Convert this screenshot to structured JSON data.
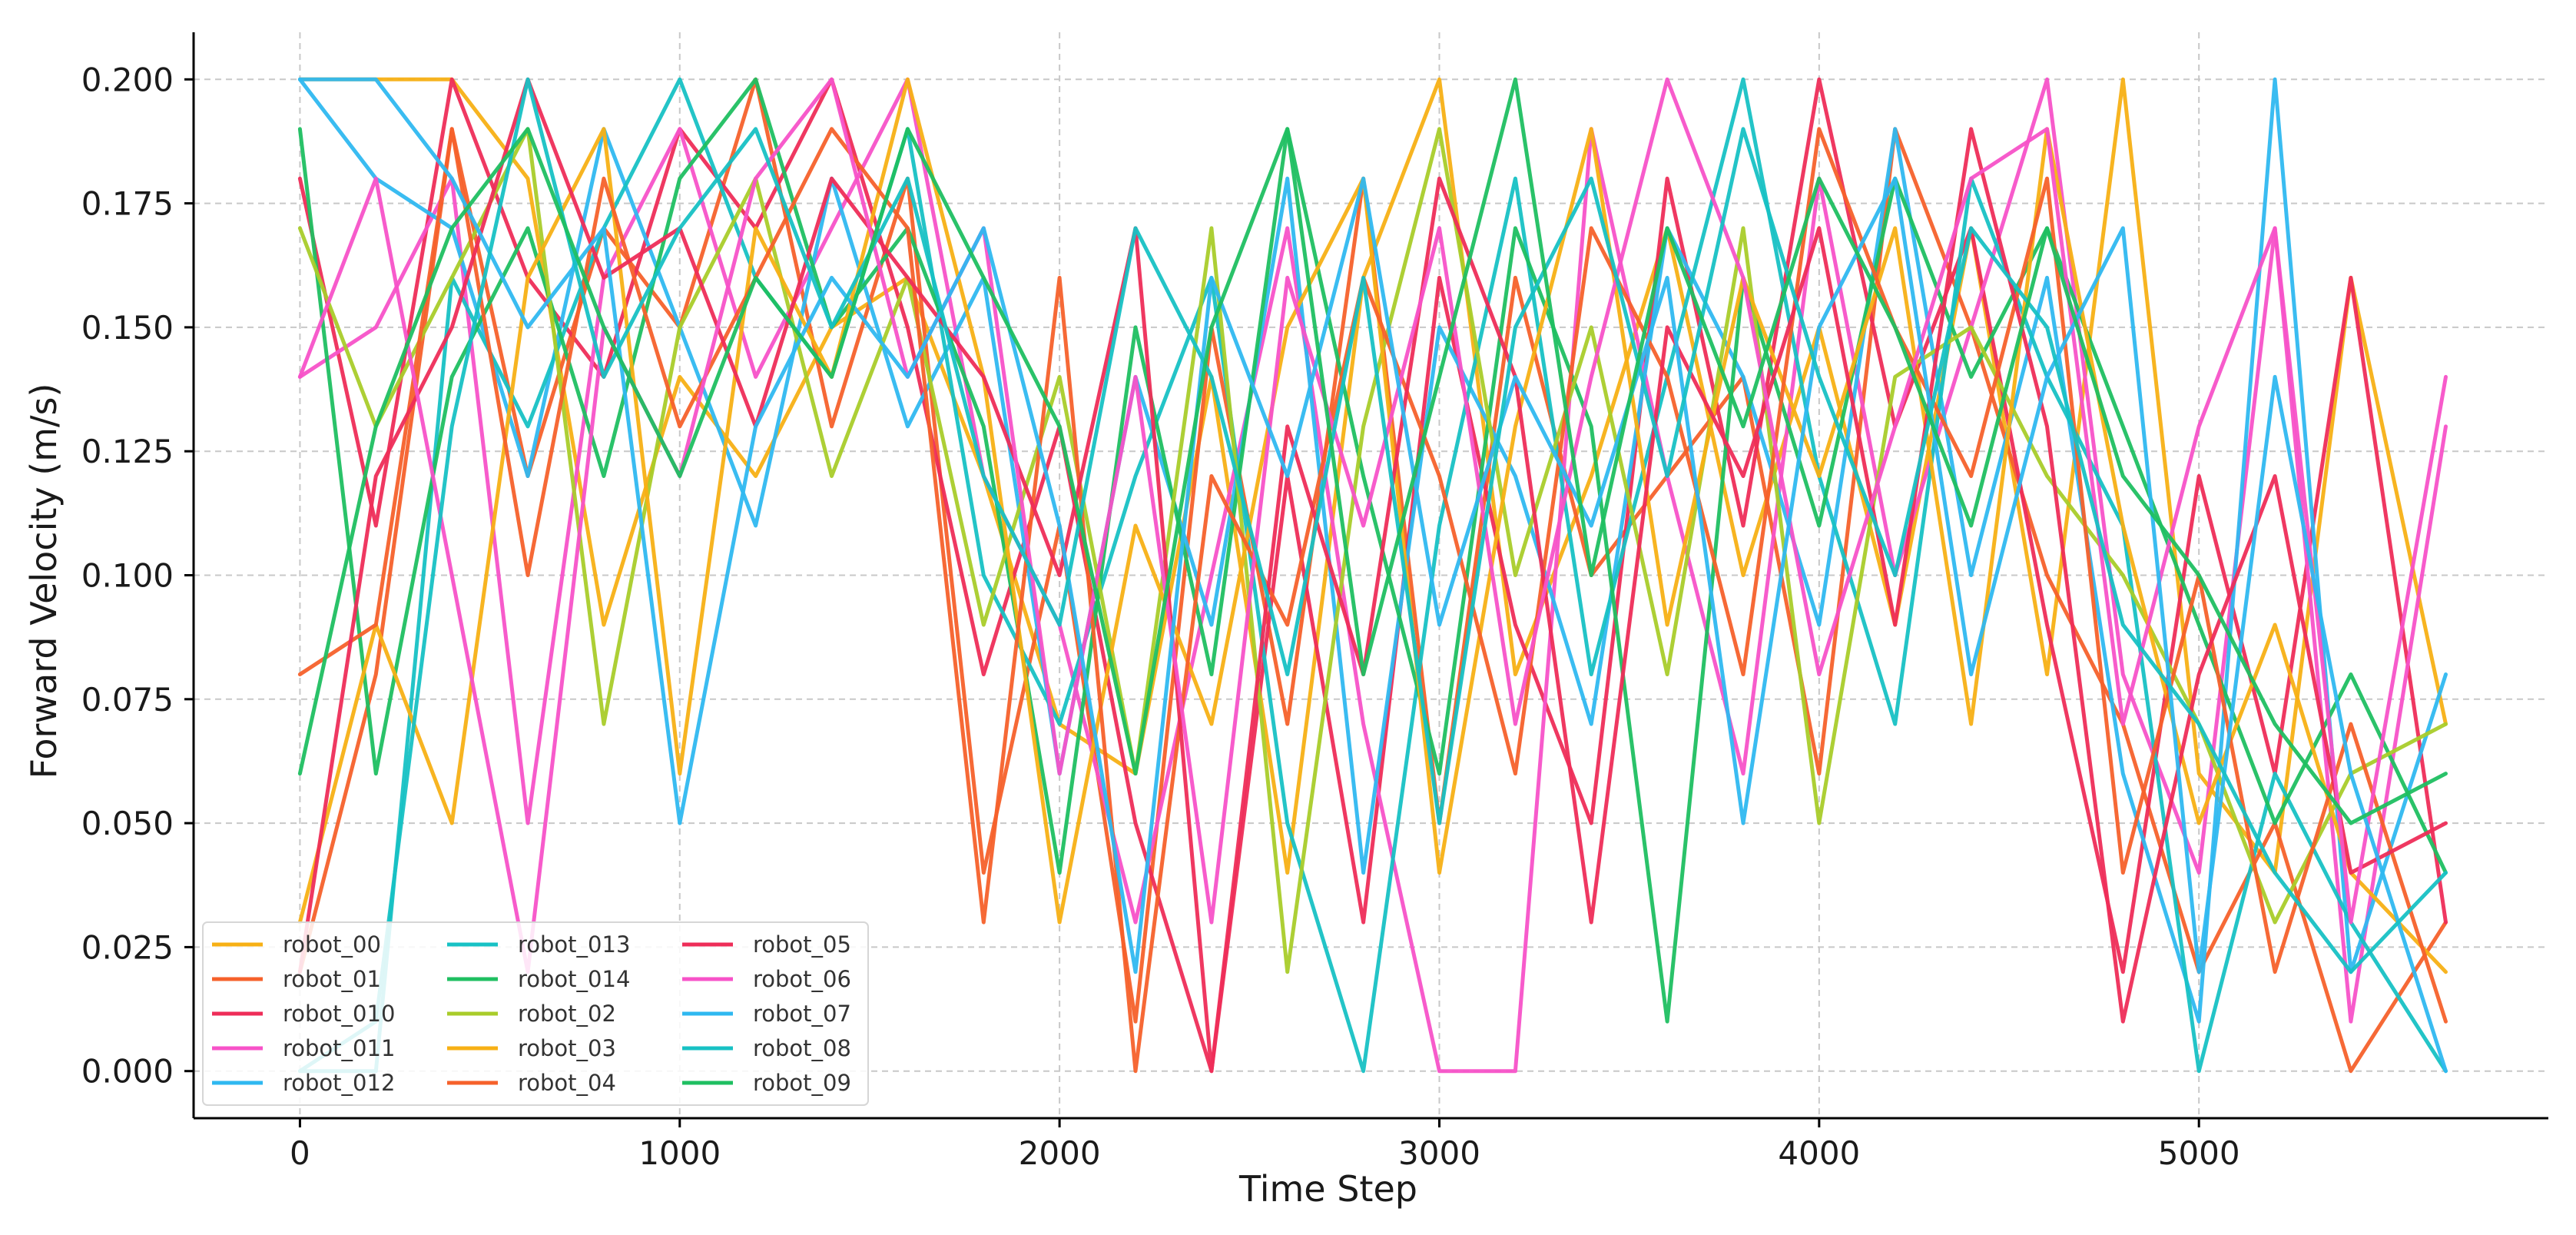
{
  "chart_data": {
    "type": "line",
    "title": "",
    "xlabel": "Time Step",
    "ylabel": "Forward Velocity (m/s)",
    "xlim": [
      -280,
      5920
    ],
    "ylim": [
      -0.0095,
      0.2095
    ],
    "xticks": [
      0,
      1000,
      2000,
      3000,
      4000,
      5000
    ],
    "xtick_labels": [
      "0",
      "1000",
      "2000",
      "3000",
      "4000",
      "5000"
    ],
    "yticks": [
      0.0,
      0.025,
      0.05,
      0.075,
      0.1,
      0.125,
      0.15,
      0.175,
      0.2
    ],
    "ytick_labels": [
      "0.000",
      "0.025",
      "0.050",
      "0.075",
      "0.100",
      "0.125",
      "0.150",
      "0.175",
      "0.200"
    ],
    "grid": true,
    "legend_position": "lower-left",
    "legend_columns": 3,
    "series": [
      {
        "name": "robot_00",
        "color": "#f7b015",
        "x": [
          0,
          200,
          400,
          600,
          800,
          1000,
          1200,
          1400,
          1600,
          1800,
          2000,
          2200,
          2400,
          2600,
          2800,
          3000,
          3200,
          3400,
          3600,
          3800,
          4000,
          4200,
          4400,
          4600,
          4800,
          5000,
          5200,
          5400,
          5650
        ],
        "y": [
          0.2,
          0.2,
          0.2,
          0.18,
          0.09,
          0.14,
          0.12,
          0.15,
          0.16,
          0.12,
          0.07,
          0.06,
          0.14,
          0.04,
          0.16,
          0.2,
          0.08,
          0.12,
          0.17,
          0.1,
          0.15,
          0.09,
          0.17,
          0.08,
          0.2,
          0.06,
          0.04,
          0.16,
          0.07
        ]
      },
      {
        "name": "robot_01",
        "color": "#f6612b",
        "x": [
          0,
          200,
          400,
          600,
          800,
          1000,
          1200,
          1400,
          1600,
          1800,
          2000,
          2200,
          2400,
          2600,
          2800,
          3000,
          3200,
          3400,
          3600,
          3800,
          4000,
          4200,
          4400,
          4600,
          4800,
          5000,
          5200,
          5400,
          5650
        ],
        "y": [
          0.02,
          0.08,
          0.19,
          0.12,
          0.17,
          0.15,
          0.2,
          0.13,
          0.18,
          0.04,
          0.11,
          0.01,
          0.15,
          0.07,
          0.18,
          0.05,
          0.16,
          0.1,
          0.12,
          0.14,
          0.06,
          0.19,
          0.15,
          0.1,
          0.07,
          0.02,
          0.05,
          0.0,
          0.03
        ]
      },
      {
        "name": "robot_010",
        "color": "#ee2d58",
        "x": [
          0,
          200,
          400,
          600,
          800,
          1000,
          1200,
          1400,
          1600,
          1800,
          2000,
          2200,
          2400,
          2600,
          2800,
          3000,
          3200,
          3400,
          3600,
          3800,
          4000,
          4200,
          4400,
          4600,
          4800,
          5000,
          5200,
          5400,
          5650
        ],
        "y": [
          0.18,
          0.11,
          0.2,
          0.16,
          0.14,
          0.19,
          0.17,
          0.2,
          0.15,
          0.08,
          0.13,
          0.05,
          0.0,
          0.12,
          0.03,
          0.16,
          0.09,
          0.05,
          0.18,
          0.11,
          0.2,
          0.13,
          0.17,
          0.09,
          0.02,
          0.12,
          0.06,
          0.16,
          0.03
        ]
      },
      {
        "name": "robot_011",
        "color": "#f752c8",
        "x": [
          0,
          200,
          400,
          600,
          800,
          1000,
          1200,
          1400,
          1600,
          1800,
          2000,
          2200,
          2400,
          2600,
          2800,
          3000,
          3200,
          3400,
          3600,
          3800,
          4000,
          4200,
          4400,
          4600,
          4800,
          5000,
          5200,
          5400,
          5650
        ],
        "y": [
          0.14,
          0.15,
          0.18,
          0.05,
          0.16,
          0.19,
          0.14,
          0.17,
          0.2,
          0.12,
          0.09,
          0.03,
          0.1,
          0.17,
          0.07,
          0.0,
          0.0,
          0.19,
          0.12,
          0.06,
          0.18,
          0.1,
          0.15,
          0.2,
          0.08,
          0.04,
          0.17,
          0.01,
          0.13
        ]
      },
      {
        "name": "robot_012",
        "color": "#2fb8f0",
        "x": [
          0,
          200,
          400,
          600,
          800,
          1000,
          1200,
          1400,
          1600,
          1800,
          2000,
          2200,
          2400,
          2600,
          2800,
          3000,
          3200,
          3400,
          3600,
          3800,
          4000,
          4200,
          4400,
          4600,
          4800,
          5000,
          5200,
          5400,
          5650
        ],
        "y": [
          0.2,
          0.18,
          0.17,
          0.12,
          0.19,
          0.15,
          0.11,
          0.18,
          0.13,
          0.16,
          0.06,
          0.14,
          0.09,
          0.18,
          0.04,
          0.15,
          0.12,
          0.07,
          0.17,
          0.14,
          0.09,
          0.19,
          0.1,
          0.16,
          0.06,
          0.01,
          0.2,
          0.02,
          0.08
        ]
      },
      {
        "name": "robot_013",
        "color": "#17c1c4",
        "x": [
          0,
          200,
          400,
          600,
          800,
          1000,
          1200,
          1400,
          1600,
          1800,
          2000,
          2200,
          2400,
          2600,
          2800,
          3000,
          3200,
          3400,
          3600,
          3800,
          4000,
          4200,
          4400,
          4600,
          4800,
          5000,
          5200,
          5400,
          5650
        ],
        "y": [
          0.0,
          0.0,
          0.16,
          0.13,
          0.17,
          0.2,
          0.16,
          0.14,
          0.19,
          0.1,
          0.07,
          0.12,
          0.16,
          0.05,
          0.0,
          0.11,
          0.18,
          0.08,
          0.14,
          0.2,
          0.12,
          0.07,
          0.18,
          0.14,
          0.11,
          0.0,
          0.06,
          0.03,
          0.0
        ]
      },
      {
        "name": "robot_014",
        "color": "#1fbf61",
        "x": [
          0,
          200,
          400,
          600,
          800,
          1000,
          1200,
          1400,
          1600,
          1800,
          2000,
          2200,
          2400,
          2600,
          2800,
          3000,
          3200,
          3400,
          3600,
          3800,
          4000,
          4200,
          4400,
          4600,
          4800,
          5000,
          5200,
          5400,
          5650
        ],
        "y": [
          0.19,
          0.06,
          0.14,
          0.17,
          0.12,
          0.18,
          0.2,
          0.15,
          0.17,
          0.13,
          0.04,
          0.15,
          0.08,
          0.19,
          0.12,
          0.06,
          0.17,
          0.13,
          0.01,
          0.16,
          0.11,
          0.18,
          0.14,
          0.17,
          0.13,
          0.09,
          0.05,
          0.08,
          0.04
        ]
      },
      {
        "name": "robot_02",
        "color": "#a9cc2a",
        "x": [
          0,
          200,
          400,
          600,
          800,
          1000,
          1200,
          1400,
          1600,
          1800,
          2000,
          2200,
          2400,
          2600,
          2800,
          3000,
          3200,
          3400,
          3600,
          3800,
          4000,
          4200,
          4400,
          4600,
          4800,
          5000,
          5200,
          5400,
          5650
        ],
        "y": [
          0.17,
          0.13,
          0.16,
          0.19,
          0.07,
          0.15,
          0.18,
          0.12,
          0.16,
          0.09,
          0.14,
          0.06,
          0.17,
          0.02,
          0.13,
          0.19,
          0.1,
          0.15,
          0.08,
          0.17,
          0.05,
          0.14,
          0.15,
          0.12,
          0.1,
          0.07,
          0.03,
          0.06,
          0.07
        ]
      },
      {
        "name": "robot_03",
        "color": "#f7b015",
        "x": [
          0,
          200,
          400,
          600,
          800,
          1000,
          1200,
          1400,
          1600,
          1800,
          2000,
          2200,
          2400,
          2600,
          2800,
          3000,
          3200,
          3400,
          3600,
          3800,
          4000,
          4200,
          4400,
          4600,
          4800,
          5000,
          5200,
          5400,
          5650
        ],
        "y": [
          0.03,
          0.09,
          0.05,
          0.16,
          0.19,
          0.06,
          0.17,
          0.14,
          0.2,
          0.14,
          0.03,
          0.11,
          0.07,
          0.15,
          0.18,
          0.04,
          0.13,
          0.19,
          0.09,
          0.16,
          0.12,
          0.17,
          0.07,
          0.19,
          0.11,
          0.05,
          0.09,
          0.04,
          0.02
        ]
      },
      {
        "name": "robot_04",
        "color": "#f6612b",
        "x": [
          0,
          200,
          400,
          600,
          800,
          1000,
          1200,
          1400,
          1600,
          1800,
          2000,
          2200,
          2400,
          2600,
          2800,
          3000,
          3200,
          3400,
          3600,
          3800,
          4000,
          4200,
          4400,
          4600,
          4800,
          5000,
          5200,
          5400,
          5650
        ],
        "y": [
          0.08,
          0.09,
          0.19,
          0.1,
          0.18,
          0.13,
          0.16,
          0.19,
          0.17,
          0.03,
          0.16,
          0.0,
          0.12,
          0.09,
          0.16,
          0.12,
          0.06,
          0.17,
          0.14,
          0.08,
          0.19,
          0.15,
          0.12,
          0.18,
          0.04,
          0.1,
          0.02,
          0.07,
          0.01
        ]
      },
      {
        "name": "robot_05",
        "color": "#ee2d58",
        "x": [
          0,
          200,
          400,
          600,
          800,
          1000,
          1200,
          1400,
          1600,
          1800,
          2000,
          2200,
          2400,
          2600,
          2800,
          3000,
          3200,
          3400,
          3600,
          3800,
          4000,
          4200,
          4400,
          4600,
          4800,
          5000,
          5200,
          5400,
          5650
        ],
        "y": [
          0.02,
          0.12,
          0.15,
          0.2,
          0.16,
          0.17,
          0.13,
          0.18,
          0.16,
          0.14,
          0.1,
          0.17,
          0.0,
          0.13,
          0.08,
          0.18,
          0.14,
          0.03,
          0.15,
          0.12,
          0.17,
          0.09,
          0.19,
          0.13,
          0.01,
          0.08,
          0.12,
          0.04,
          0.05
        ]
      },
      {
        "name": "robot_06",
        "color": "#f752c8",
        "x": [
          0,
          200,
          400,
          600,
          800,
          1000,
          1200,
          1400,
          1600,
          1800,
          2000,
          2200,
          2400,
          2600,
          2800,
          3000,
          3200,
          3400,
          3600,
          3800,
          4000,
          4200,
          4400,
          4600,
          4800,
          5000,
          5200,
          5400,
          5650
        ],
        "y": [
          0.14,
          0.18,
          0.1,
          0.02,
          0.15,
          0.12,
          0.18,
          0.2,
          0.14,
          0.17,
          0.06,
          0.14,
          0.03,
          0.16,
          0.11,
          0.17,
          0.07,
          0.14,
          0.2,
          0.16,
          0.08,
          0.13,
          0.18,
          0.19,
          0.07,
          0.13,
          0.17,
          0.03,
          0.14
        ]
      },
      {
        "name": "robot_07",
        "color": "#2fb8f0",
        "x": [
          0,
          200,
          400,
          600,
          800,
          1000,
          1200,
          1400,
          1600,
          1800,
          2000,
          2200,
          2400,
          2600,
          2800,
          3000,
          3200,
          3400,
          3600,
          3800,
          4000,
          4200,
          4400,
          4600,
          4800,
          5000,
          5200,
          5400,
          5650
        ],
        "y": [
          0.2,
          0.2,
          0.18,
          0.15,
          0.17,
          0.05,
          0.13,
          0.16,
          0.14,
          0.17,
          0.11,
          0.02,
          0.16,
          0.12,
          0.18,
          0.09,
          0.14,
          0.11,
          0.16,
          0.05,
          0.15,
          0.18,
          0.08,
          0.14,
          0.17,
          0.02,
          0.14,
          0.06,
          0.0
        ]
      },
      {
        "name": "robot_08",
        "color": "#17c1c4",
        "x": [
          0,
          200,
          400,
          600,
          800,
          1000,
          1200,
          1400,
          1600,
          1800,
          2000,
          2200,
          2400,
          2600,
          2800,
          3000,
          3200,
          3400,
          3600,
          3800,
          4000,
          4200,
          4400,
          4600,
          4800,
          5000,
          5200,
          5400,
          5650
        ],
        "y": [
          0.0,
          0.01,
          0.13,
          0.2,
          0.14,
          0.17,
          0.19,
          0.15,
          0.18,
          0.12,
          0.09,
          0.17,
          0.14,
          0.08,
          0.16,
          0.05,
          0.15,
          0.18,
          0.12,
          0.19,
          0.14,
          0.1,
          0.17,
          0.15,
          0.09,
          0.07,
          0.04,
          0.02,
          0.04
        ]
      },
      {
        "name": "robot_09",
        "color": "#1fbf61",
        "x": [
          0,
          200,
          400,
          600,
          800,
          1000,
          1200,
          1400,
          1600,
          1800,
          2000,
          2200,
          2400,
          2600,
          2800,
          3000,
          3200,
          3400,
          3600,
          3800,
          4000,
          4200,
          4400,
          4600,
          4800,
          5000,
          5200,
          5400,
          5650
        ],
        "y": [
          0.06,
          0.13,
          0.17,
          0.19,
          0.15,
          0.12,
          0.16,
          0.14,
          0.19,
          0.16,
          0.13,
          0.06,
          0.15,
          0.19,
          0.08,
          0.14,
          0.2,
          0.1,
          0.17,
          0.13,
          0.18,
          0.15,
          0.11,
          0.17,
          0.12,
          0.1,
          0.07,
          0.05,
          0.06
        ]
      }
    ]
  }
}
